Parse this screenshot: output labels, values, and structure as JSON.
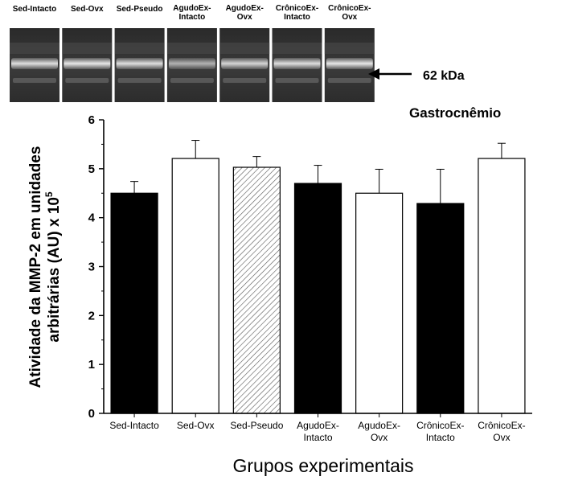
{
  "blot": {
    "lane_labels": [
      [
        "Sed-Intacto"
      ],
      [
        "Sed-Ovx"
      ],
      [
        "Sed-Pseudo"
      ],
      [
        "AgudoEx-",
        "Intacto"
      ],
      [
        "AgudoEx-",
        "Ovx"
      ],
      [
        "CrônicoEx-",
        "Intacto"
      ],
      [
        "CrônicoEx-",
        "Ovx"
      ]
    ],
    "marker_label": "62 kDa"
  },
  "chart_data": {
    "type": "bar",
    "title": "Gastrocnêmio",
    "ylabel_lines": [
      "Atividade da MMP-2 em unidades",
      "arbitrárias  (AU) x 10"
    ],
    "ylabel_superscript": "5",
    "xlabel": "Grupos experimentais",
    "ylim": [
      0,
      6
    ],
    "yticks": [
      0,
      1,
      2,
      3,
      4,
      5,
      6
    ],
    "categories": [
      [
        "Sed-Intacto"
      ],
      [
        "Sed-Ovx"
      ],
      [
        "Sed-Pseudo"
      ],
      [
        "AgudoEx-",
        "Intacto"
      ],
      [
        "AgudoEx-",
        "Ovx"
      ],
      [
        "CrônicoEx-",
        "Intacto"
      ],
      [
        "CrônicoEx-",
        "Ovx"
      ]
    ],
    "values": [
      4.5,
      5.21,
      5.03,
      4.7,
      4.5,
      4.29,
      5.21
    ],
    "error_upper": [
      0.24,
      0.37,
      0.22,
      0.37,
      0.49,
      0.7,
      0.31
    ],
    "fills": [
      "solid",
      "open",
      "hatched",
      "solid",
      "open",
      "solid",
      "open"
    ],
    "colors": {
      "solid": "#000000",
      "open": "#ffffff",
      "hatch": "#555555"
    }
  }
}
